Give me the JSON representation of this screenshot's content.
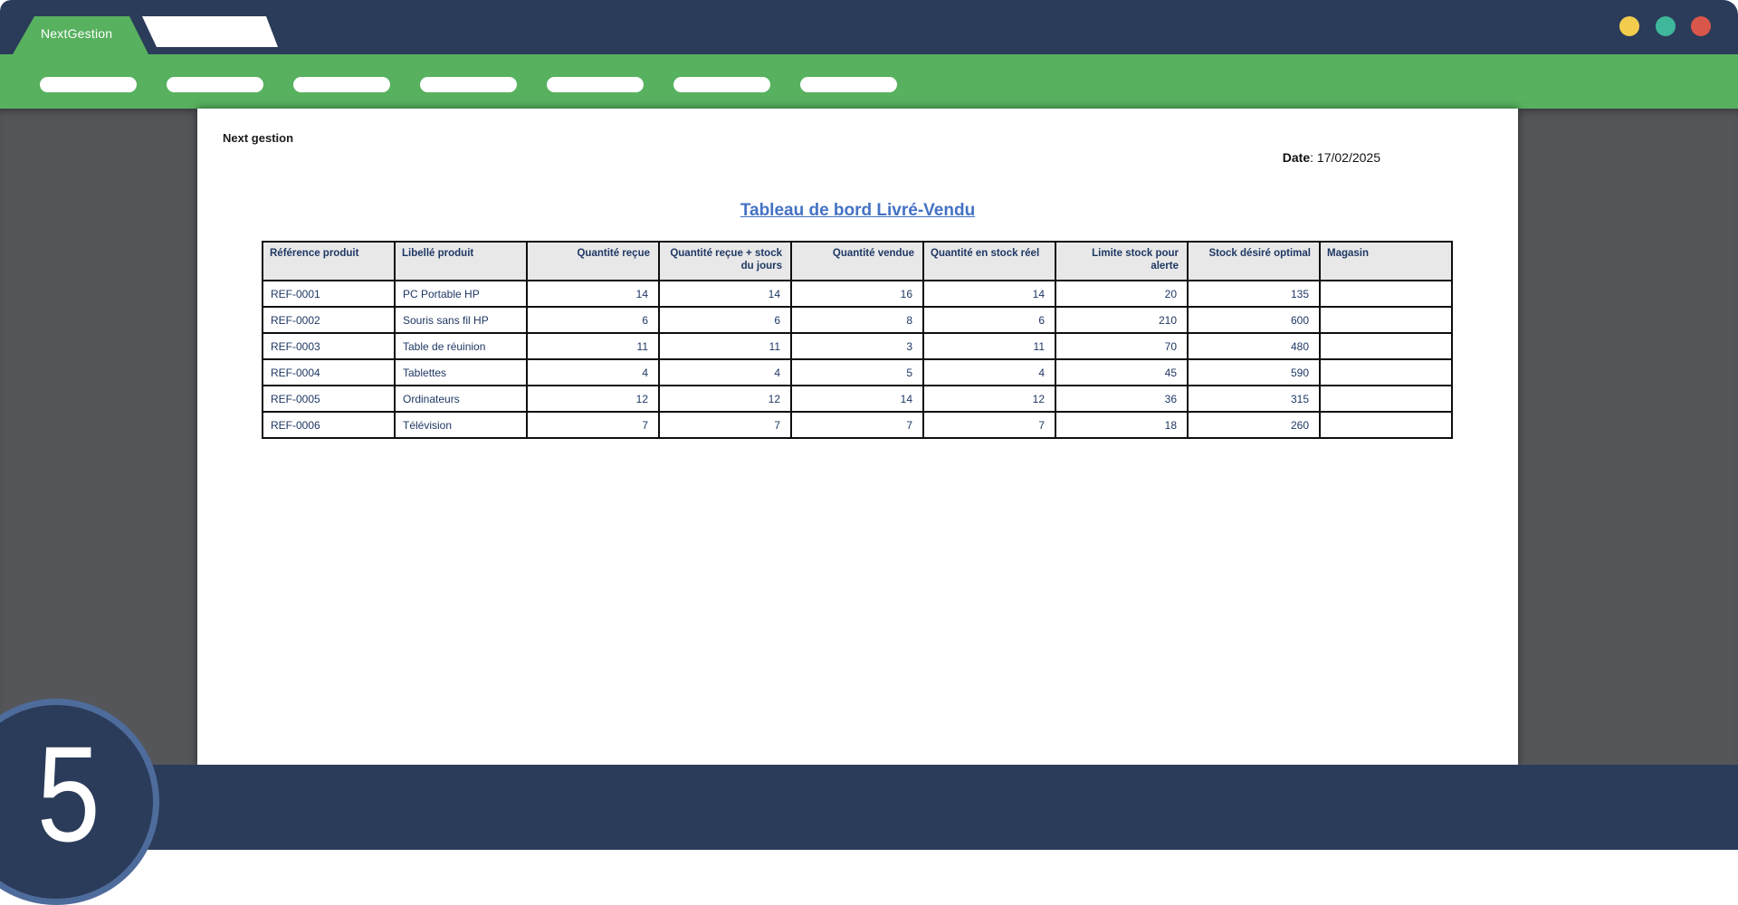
{
  "window": {
    "brand_tab_label": "NextGestion",
    "controls": [
      {
        "name": "minimize-button",
        "color": "#f3cc4e"
      },
      {
        "name": "maximize-button",
        "color": "#3fb79a"
      },
      {
        "name": "close-button",
        "color": "#d9564a"
      }
    ],
    "toolbar_pill_count": 7
  },
  "colors": {
    "navy_bar": "#2b3c5a",
    "green_bar": "#57b15f",
    "workspace_gray": "#54565a",
    "title_blue": "#4472c4",
    "table_text_navy": "#1f3864",
    "circle_ring": "#4e6c9b"
  },
  "page": {
    "brand": "Next gestion",
    "date_label": "Date",
    "date_separator": ": ",
    "date_value": "17/02/2025",
    "title": "Tableau de bord Livré-Vendu",
    "table": {
      "headers": [
        "Référence produit",
        "Libellé produit",
        "Quantité reçue",
        "Quantité reçue + stock du jours",
        "Quantité vendue",
        "Quantité en stock réel",
        "Limite stock pour alerte",
        "Stock désiré optimal",
        "Magasin"
      ],
      "rows": [
        [
          "REF-0001",
          "PC Portable HP",
          "14",
          "14",
          "16",
          "14",
          "20",
          "135",
          ""
        ],
        [
          "REF-0002",
          "Souris sans fil HP",
          "6",
          "6",
          "8",
          "6",
          "210",
          "600",
          ""
        ],
        [
          "REF-0003",
          "Table de réuinion",
          "11",
          "11",
          "3",
          "11",
          "70",
          "480",
          ""
        ],
        [
          "REF-0004",
          "Tablettes",
          "4",
          "4",
          "5",
          "4",
          "45",
          "590",
          ""
        ],
        [
          "REF-0005",
          "Ordinateurs",
          "12",
          "12",
          "14",
          "12",
          "36",
          "315",
          ""
        ],
        [
          "REF-0006",
          "Télévision",
          "7",
          "7",
          "7",
          "7",
          "18",
          "260",
          ""
        ]
      ]
    }
  },
  "step_number": "5"
}
